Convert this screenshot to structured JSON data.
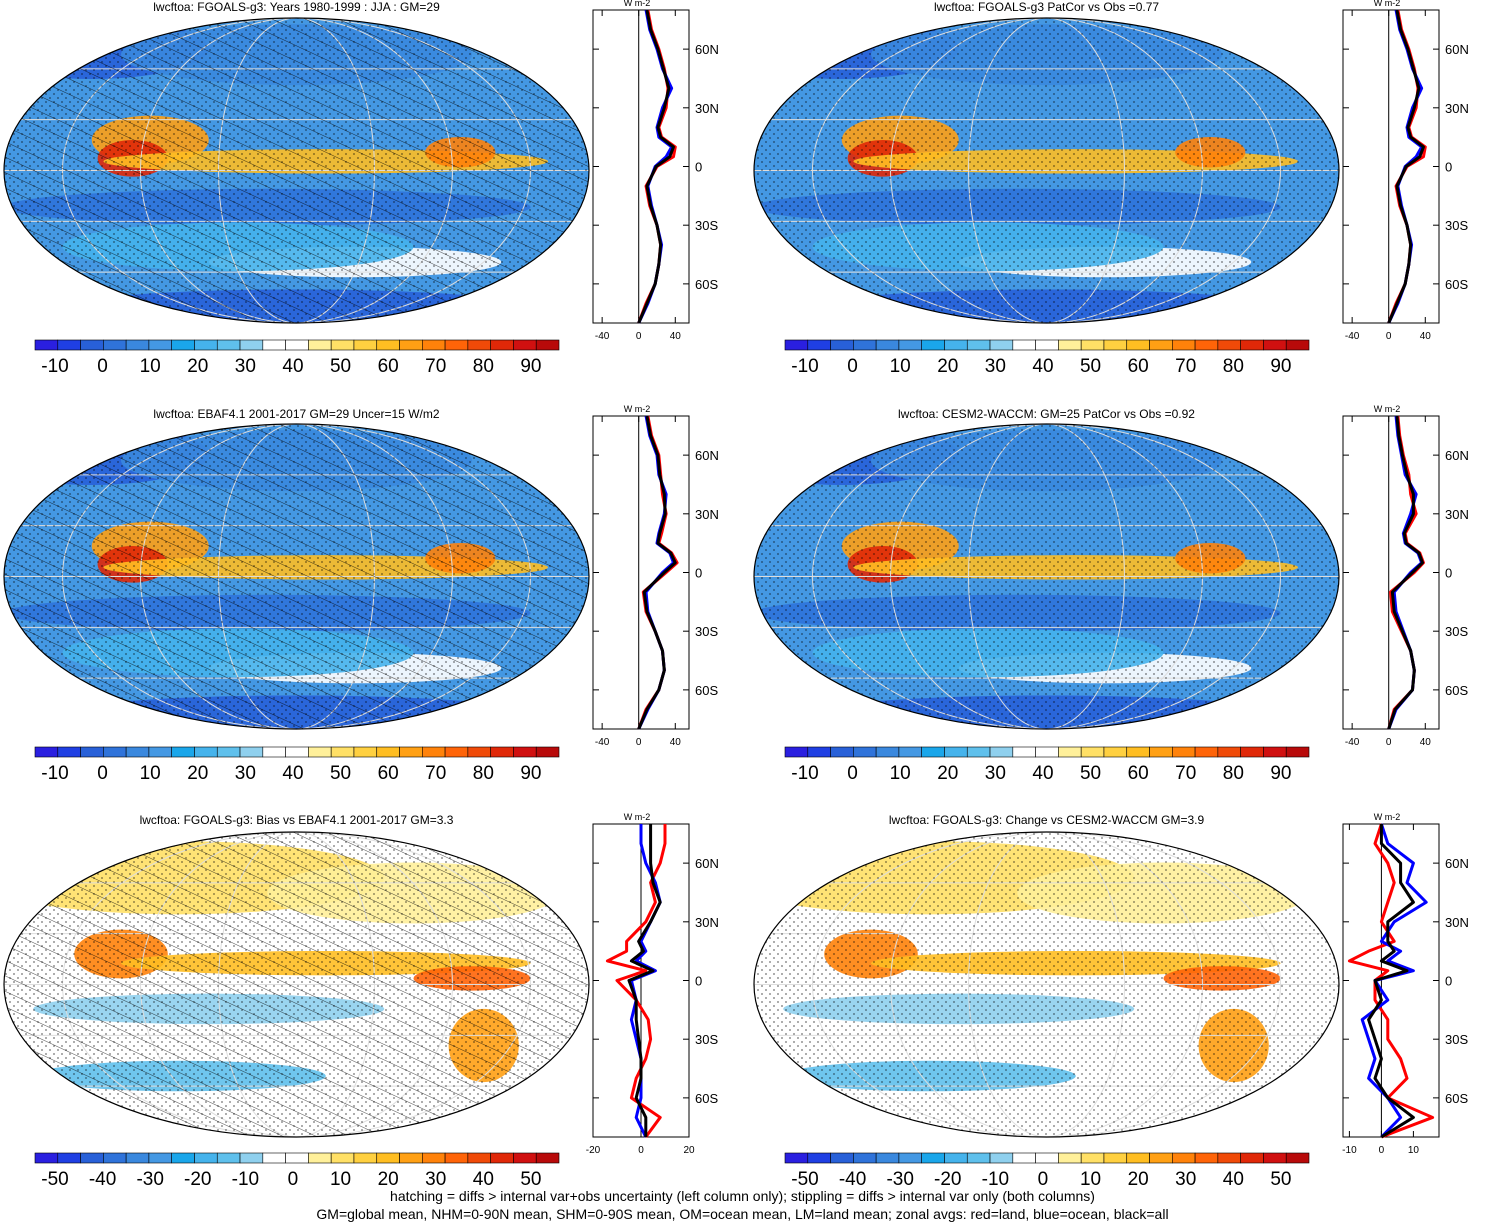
{
  "colorbar": {
    "abs": {
      "colors": [
        "#2a1fe0",
        "#1f3fe3",
        "#2860d8",
        "#2f73da",
        "#3a88de",
        "#4498e3",
        "#1aa6ea",
        "#45b3ec",
        "#5fc0ec",
        "#8fd0ee",
        "#ffffff",
        "#ffffff",
        "#fff09a",
        "#ffe066",
        "#ffd040",
        "#ffbe22",
        "#ffa014",
        "#ff820a",
        "#ff6408",
        "#f04a08",
        "#e02808",
        "#d01010",
        "#b80a0a"
      ],
      "labels": [
        "-10",
        "0",
        "10",
        "20",
        "30",
        "40",
        "50",
        "60",
        "70",
        "80",
        "90"
      ]
    },
    "diff": {
      "colors": [
        "#2a1fe0",
        "#1f3fe3",
        "#2860d8",
        "#2f73da",
        "#3a88de",
        "#4498e3",
        "#1aa6ea",
        "#45b3ec",
        "#5fc0ec",
        "#8fd0ee",
        "#ffffff",
        "#ffffff",
        "#fff09a",
        "#ffe066",
        "#ffd040",
        "#ffbe22",
        "#ffa014",
        "#ff820a",
        "#ff6408",
        "#f04a08",
        "#e02808",
        "#d01010",
        "#b80a0a"
      ],
      "labels": [
        "-50",
        "-40",
        "-30",
        "-20",
        "-10",
        "0",
        "10",
        "20",
        "30",
        "40",
        "50"
      ]
    }
  },
  "chart_data": [
    {
      "type": "heatmap",
      "title": "lwcftoa: FGOALS-g3: Years 1980-1999 : JJA : GM=29",
      "colorbar": "abs",
      "hatching": true,
      "profile": {
        "type": "line",
        "unit": "W m-2",
        "xticks": [
          "-40",
          "0",
          "40"
        ],
        "xlim": [
          -50,
          55
        ],
        "yticks": [
          "60N",
          "30N",
          "0",
          "30S",
          "60S"
        ],
        "ylim": [
          -80,
          80
        ],
        "lat": [
          -80,
          -70,
          -60,
          -50,
          -40,
          -30,
          -20,
          -10,
          0,
          5,
          10,
          15,
          20,
          30,
          40,
          50,
          60,
          70,
          80
        ],
        "series": [
          {
            "color": "#ff0000",
            "values": [
              0,
              8,
              18,
              22,
              24,
              20,
              12,
              8,
              20,
              38,
              40,
              25,
              22,
              30,
              32,
              28,
              22,
              14,
              10
            ]
          },
          {
            "color": "#0000ff",
            "values": [
              0,
              10,
              18,
              22,
              25,
              20,
              14,
              10,
              18,
              30,
              36,
              22,
              20,
              26,
              36,
              26,
              20,
              12,
              8
            ]
          },
          {
            "color": "#000000",
            "values": [
              0,
              9,
              18,
              22,
              24,
              20,
              13,
              9,
              19,
              34,
              38,
              24,
              21,
              28,
              33,
              27,
              21,
              13,
              9
            ]
          }
        ]
      }
    },
    {
      "type": "heatmap",
      "title": "lwcftoa: FGOALS-g3 PatCor vs Obs =0.77",
      "colorbar": "abs",
      "hatching": false,
      "profile": {
        "type": "line",
        "unit": "W m-2",
        "xticks": [
          "-40",
          "0",
          "40"
        ],
        "xlim": [
          -50,
          55
        ],
        "yticks": [
          "60N",
          "30N",
          "0",
          "30S",
          "60S"
        ],
        "ylim": [
          -80,
          80
        ],
        "lat": [
          -80,
          -70,
          -60,
          -50,
          -40,
          -30,
          -20,
          -10,
          0,
          5,
          10,
          15,
          20,
          30,
          40,
          50,
          60,
          70,
          80
        ],
        "series": [
          {
            "color": "#ff0000",
            "values": [
              0,
              8,
              18,
              22,
              24,
              20,
              12,
              8,
              20,
              38,
              40,
              25,
              22,
              30,
              32,
              28,
              22,
              14,
              10
            ]
          },
          {
            "color": "#0000ff",
            "values": [
              0,
              10,
              18,
              22,
              25,
              20,
              14,
              10,
              18,
              30,
              36,
              22,
              20,
              26,
              36,
              26,
              20,
              12,
              8
            ]
          },
          {
            "color": "#000000",
            "values": [
              0,
              9,
              18,
              22,
              24,
              20,
              13,
              9,
              19,
              34,
              38,
              24,
              21,
              28,
              33,
              27,
              21,
              13,
              9
            ]
          }
        ]
      }
    },
    {
      "type": "heatmap",
      "title": "lwcftoa: EBAF4.1 2001-2017 GM=29 Uncer=15 W/m2",
      "colorbar": "abs",
      "hatching": true,
      "profile": {
        "type": "line",
        "unit": "W m-2",
        "xticks": [
          "-40",
          "0",
          "40"
        ],
        "xlim": [
          -50,
          55
        ],
        "yticks": [
          "60N",
          "30N",
          "0",
          "30S",
          "60S"
        ],
        "ylim": [
          -80,
          80
        ],
        "lat": [
          -80,
          -70,
          -60,
          -50,
          -40,
          -30,
          -20,
          -10,
          0,
          5,
          10,
          15,
          20,
          30,
          40,
          50,
          60,
          70,
          80
        ],
        "series": [
          {
            "color": "#ff0000",
            "values": [
              0,
              8,
              22,
              28,
              26,
              18,
              8,
              5,
              30,
              42,
              36,
              22,
              25,
              30,
              26,
              24,
              22,
              14,
              10
            ]
          },
          {
            "color": "#0000ff",
            "values": [
              0,
              10,
              22,
              28,
              26,
              18,
              10,
              8,
              26,
              38,
              34,
              20,
              22,
              28,
              30,
              22,
              20,
              12,
              8
            ]
          },
          {
            "color": "#000000",
            "values": [
              0,
              9,
              22,
              28,
              26,
              18,
              9,
              6,
              28,
              40,
              35,
              21,
              23,
              29,
              28,
              23,
              21,
              13,
              9
            ]
          }
        ]
      }
    },
    {
      "type": "heatmap",
      "title": "lwcftoa: CESM2-WACCM: GM=25 PatCor vs Obs =0.92",
      "colorbar": "abs",
      "hatching": false,
      "profile": {
        "type": "line",
        "unit": "W m-2",
        "xticks": [
          "-40",
          "0",
          "40"
        ],
        "xlim": [
          -50,
          55
        ],
        "yticks": [
          "60N",
          "30N",
          "0",
          "30S",
          "60S"
        ],
        "ylim": [
          -80,
          80
        ],
        "lat": [
          -80,
          -70,
          -60,
          -50,
          -40,
          -30,
          -20,
          -10,
          0,
          5,
          10,
          15,
          20,
          30,
          40,
          50,
          60,
          70,
          80
        ],
        "series": [
          {
            "color": "#ff0000",
            "values": [
              0,
              6,
              26,
              28,
              24,
              14,
              4,
              2,
              28,
              38,
              34,
              20,
              18,
              30,
              24,
              22,
              16,
              12,
              10
            ]
          },
          {
            "color": "#0000ff",
            "values": [
              0,
              8,
              26,
              28,
              24,
              16,
              8,
              6,
              24,
              36,
              32,
              18,
              16,
              24,
              30,
              18,
              14,
              10,
              8
            ]
          },
          {
            "color": "#000000",
            "values": [
              0,
              7,
              26,
              28,
              24,
              15,
              6,
              4,
              26,
              37,
              33,
              19,
              17,
              27,
              27,
              20,
              15,
              11,
              9
            ]
          }
        ]
      }
    },
    {
      "type": "heatmap",
      "title": "lwcftoa: FGOALS-g3: Bias vs EBAF4.1 2001-2017 GM=3.3",
      "colorbar": "diff",
      "hatching": true,
      "profile": {
        "type": "line",
        "unit": "W m-2",
        "xticks": [
          "-20",
          "0",
          "20"
        ],
        "xlim": [
          -20,
          20
        ],
        "yticks": [
          "60N",
          "30N",
          "0",
          "30S",
          "60S"
        ],
        "ylim": [
          -80,
          80
        ],
        "lat": [
          -80,
          -70,
          -60,
          -50,
          -40,
          -30,
          -20,
          -10,
          0,
          5,
          10,
          15,
          20,
          30,
          40,
          50,
          60,
          70,
          80
        ],
        "series": [
          {
            "color": "#ff0000",
            "values": [
              2,
              8,
              -4,
              -2,
              2,
              4,
              3,
              -2,
              -10,
              2,
              -14,
              -6,
              -6,
              2,
              6,
              4,
              8,
              10,
              10
            ]
          },
          {
            "color": "#0000ff",
            "values": [
              2,
              -2,
              0,
              0,
              0,
              -2,
              -4,
              -2,
              -4,
              6,
              -2,
              2,
              0,
              4,
              8,
              6,
              2,
              0,
              0
            ]
          },
          {
            "color": "#000000",
            "values": [
              2,
              2,
              -2,
              0,
              0,
              -1,
              -2,
              -2,
              -5,
              5,
              -4,
              1,
              -1,
              4,
              8,
              5,
              4,
              4,
              4
            ]
          }
        ]
      }
    },
    {
      "type": "heatmap",
      "title": "lwcftoa: FGOALS-g3: Change vs CESM2-WACCM GM=3.9",
      "colorbar": "diff",
      "hatching": false,
      "profile": {
        "type": "line",
        "unit": "W m-2",
        "xticks": [
          "-10",
          "0",
          "10"
        ],
        "xlim": [
          -12,
          18
        ],
        "yticks": [
          "60N",
          "30N",
          "0",
          "30S",
          "60S"
        ],
        "ylim": [
          -80,
          80
        ],
        "lat": [
          -80,
          -70,
          -60,
          -50,
          -40,
          -30,
          -20,
          -10,
          0,
          5,
          10,
          15,
          20,
          30,
          40,
          50,
          60,
          70,
          80
        ],
        "series": [
          {
            "color": "#ff0000",
            "values": [
              0,
              16,
              2,
              8,
              6,
              2,
              2,
              -2,
              -2,
              2,
              -10,
              -4,
              4,
              0,
              2,
              4,
              2,
              -2,
              0
            ]
          },
          {
            "color": "#0000ff",
            "values": [
              0,
              6,
              2,
              -4,
              -2,
              -4,
              -6,
              2,
              -2,
              10,
              2,
              6,
              0,
              4,
              14,
              8,
              10,
              2,
              0
            ]
          },
          {
            "color": "#000000",
            "values": [
              0,
              10,
              2,
              -2,
              0,
              -2,
              -4,
              0,
              -2,
              8,
              0,
              4,
              2,
              2,
              10,
              6,
              6,
              0,
              0
            ]
          }
        ]
      }
    }
  ],
  "footnotes": [
    "hatching = diffs > internal var+obs uncertainty (left column only); stippling = diffs > internal var only (both columns)",
    "GM=global mean, NHM=0-90N mean, SHM=0-90S mean, OM=ocean mean, LM=land mean; zonal avgs: red=land, blue=ocean, black=all"
  ]
}
